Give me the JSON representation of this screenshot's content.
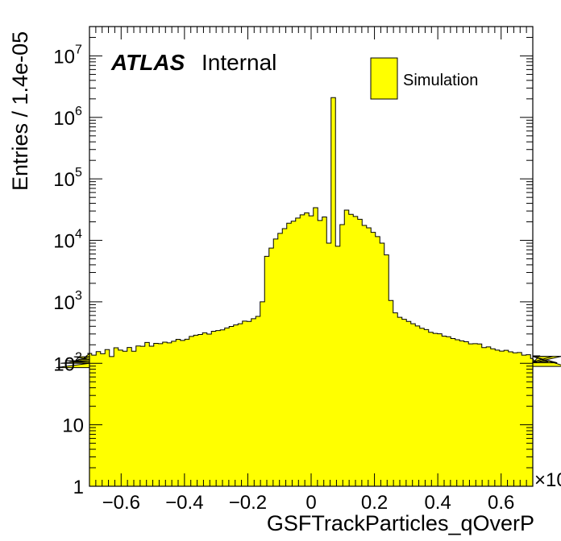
{
  "atlas": {
    "label": "ATLAS",
    "status": "Internal"
  },
  "x_multiplier": "×10",
  "chart_data": {
    "type": "histogram",
    "xlabel": "GSFTrackParticles_qOverP",
    "ylabel": "Entries / 1.4e-05",
    "log_y": true,
    "xlim": [
      -0.7,
      0.7
    ],
    "ylim": [
      1,
      30000000
    ],
    "x_ticks": [
      "-0.6",
      "-0.4",
      "-0.2",
      "0",
      "0.2",
      "0.4",
      "0.6"
    ],
    "y_ticks": [
      {
        "base": "1",
        "exp": ""
      },
      {
        "base": "10",
        "exp": ""
      },
      {
        "base": "10",
        "exp": "2"
      },
      {
        "base": "10",
        "exp": "3"
      },
      {
        "base": "10",
        "exp": "4"
      },
      {
        "base": "10",
        "exp": "5"
      },
      {
        "base": "10",
        "exp": "6"
      },
      {
        "base": "10",
        "exp": "7"
      }
    ],
    "legend": [
      "Simulation"
    ],
    "legend_position": "top-right",
    "fill_color": "#ffff00",
    "line_color": "#000000",
    "series": [
      {
        "name": "Simulation",
        "bin_width": 0.014,
        "values": [
          85,
          100,
          110,
          104,
          128,
          116,
          117,
          145,
          145,
          136,
          155,
          143,
          167,
          129,
          179,
          164,
          157,
          181,
          157,
          191,
          189,
          218,
          190,
          211,
          209,
          221,
          215,
          228,
          245,
          235,
          246,
          274,
          286,
          294,
          314,
          298,
          332,
          341,
          350,
          375,
          398,
          420,
          440,
          486,
          480,
          532,
          580,
          1000,
          5500,
          7500,
          10500,
          13000,
          15500,
          19000,
          20500,
          23000,
          26000,
          28000,
          25000,
          34000,
          21000,
          24000,
          9000,
          2100000,
          8000,
          18000,
          31000,
          26500,
          24500,
          22000,
          17500,
          16000,
          13500,
          11500,
          9000,
          5800,
          1050,
          660,
          560,
          520,
          480,
          440,
          405,
          372,
          353,
          320,
          306,
          302,
          277,
          271,
          253,
          242,
          232,
          224,
          207,
          209,
          206,
          180,
          185,
          172,
          164,
          158,
          163,
          154,
          148,
          150,
          136,
          138,
          120,
          102,
          132,
          129,
          106,
          129,
          102,
          130,
          89
        ]
      }
    ]
  }
}
